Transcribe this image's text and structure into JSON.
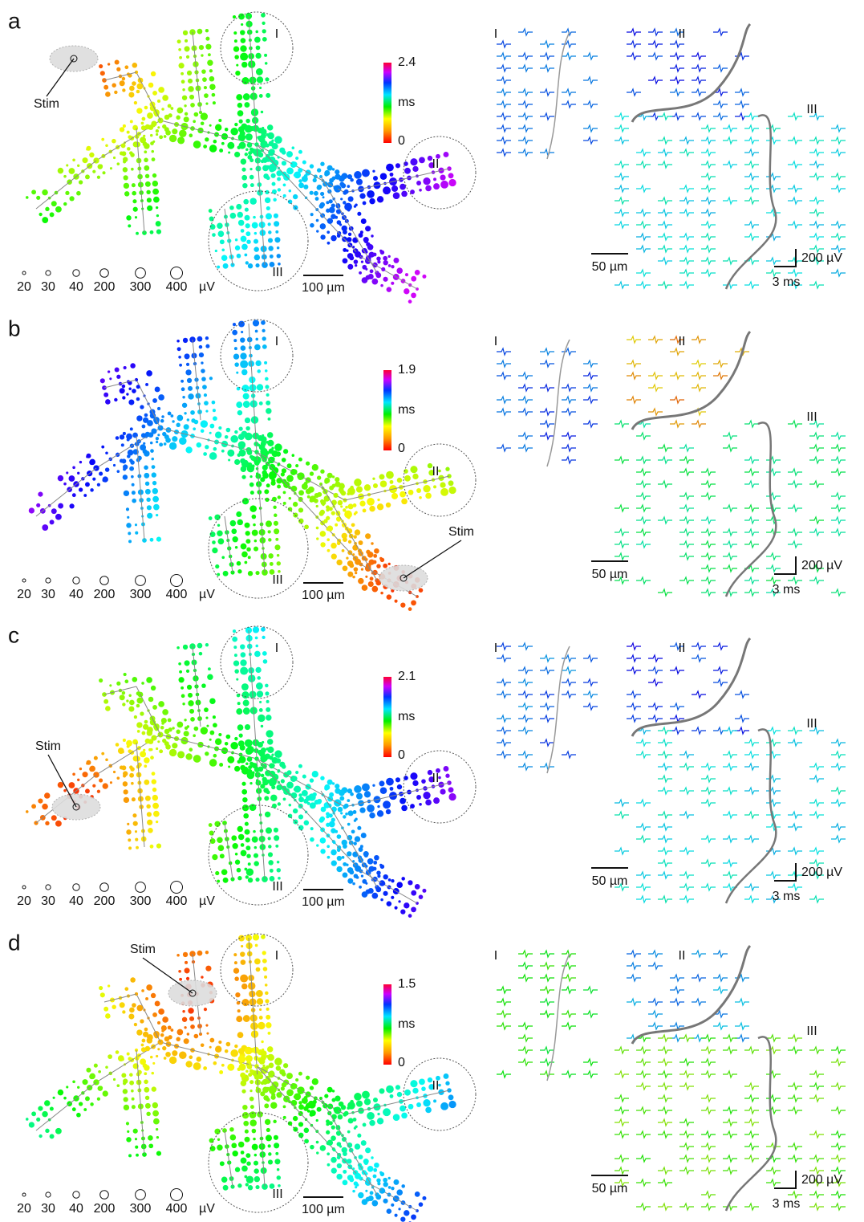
{
  "panels": [
    {
      "label": "a",
      "colorbar": {
        "max": 2.4,
        "unit": "ms",
        "min": 0
      },
      "stim": "Stim",
      "regions": [
        "I",
        "II",
        "III"
      ],
      "size_legend": {
        "values": [
          20,
          30,
          40,
          200,
          300,
          400
        ],
        "unit": "µV"
      },
      "scale_bar": "100 µm",
      "traces": {
        "regions": [
          "I",
          "II",
          "III"
        ],
        "length_bar": "50 µm",
        "voltage_bar": "200 µV",
        "time_bar": "3 ms"
      }
    },
    {
      "label": "b",
      "colorbar": {
        "max": 1.9,
        "unit": "ms",
        "min": 0
      },
      "stim": "Stim",
      "regions": [
        "I",
        "II",
        "III"
      ],
      "size_legend": {
        "values": [
          20,
          30,
          40,
          200,
          300,
          400
        ],
        "unit": "µV"
      },
      "scale_bar": "100 µm",
      "traces": {
        "regions": [
          "I",
          "II",
          "III"
        ],
        "length_bar": "50 µm",
        "voltage_bar": "200 µV",
        "time_bar": "3 ms"
      }
    },
    {
      "label": "c",
      "colorbar": {
        "max": 2.1,
        "unit": "ms",
        "min": 0
      },
      "stim": "Stim",
      "regions": [
        "I",
        "II",
        "III"
      ],
      "size_legend": {
        "values": [
          20,
          30,
          40,
          200,
          300,
          400
        ],
        "unit": "µV"
      },
      "scale_bar": "100 µm",
      "traces": {
        "regions": [
          "I",
          "II",
          "III"
        ],
        "length_bar": "50 µm",
        "voltage_bar": "200 µV",
        "time_bar": "3 ms"
      }
    },
    {
      "label": "d",
      "colorbar": {
        "max": 1.5,
        "unit": "ms",
        "min": 0
      },
      "stim": "Stim",
      "regions": [
        "I",
        "II",
        "III"
      ],
      "size_legend": {
        "values": [
          20,
          30,
          40,
          200,
          300,
          400
        ],
        "unit": "µV"
      },
      "scale_bar": "100 µm",
      "traces": {
        "regions": [
          "I",
          "II",
          "III"
        ],
        "length_bar": "50 µm",
        "voltage_bar": "200 µV",
        "time_bar": "3 ms"
      }
    }
  ]
}
